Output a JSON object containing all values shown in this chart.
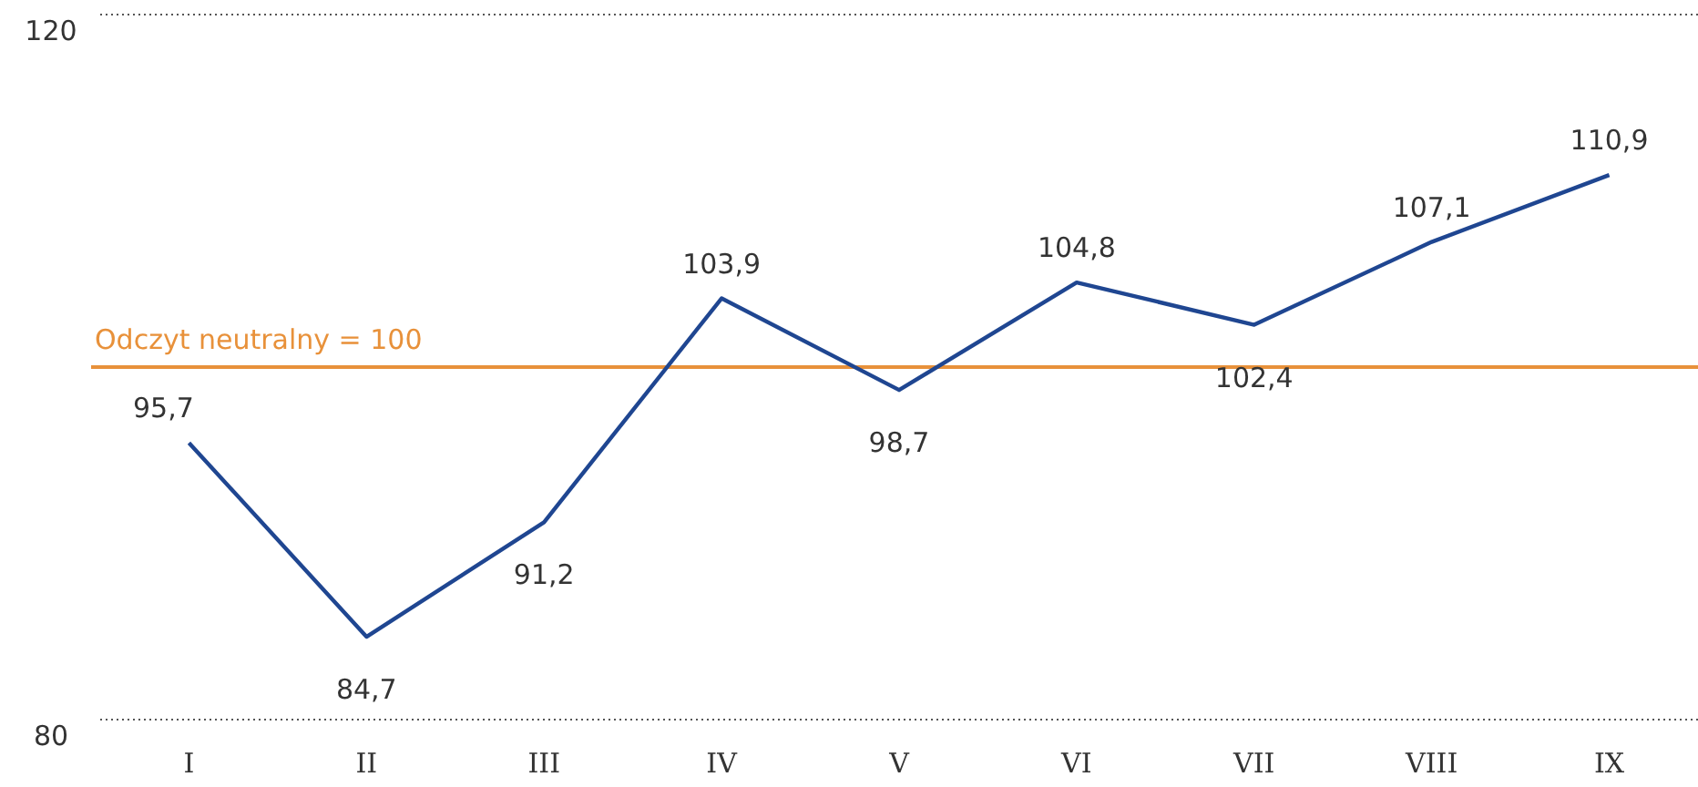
{
  "chart_data": {
    "type": "line",
    "categories": [
      "I",
      "II",
      "III",
      "IV",
      "V",
      "VI",
      "VII",
      "VIII",
      "IX"
    ],
    "series": [
      {
        "color": "#1f4691",
        "values": [
          95.7,
          84.7,
          91.2,
          103.9,
          98.7,
          104.8,
          102.4,
          107.1,
          110.9
        ],
        "value_labels": [
          "95,7",
          "84,7",
          "91,2",
          "103,9",
          "98,7",
          "104,8",
          "102,4",
          "107,1",
          "110,9"
        ]
      }
    ],
    "ylim": [
      80,
      120
    ],
    "yticks": [
      {
        "value": 80,
        "label": "80"
      },
      {
        "value": 120,
        "label": "120"
      }
    ],
    "grid": "y",
    "marker": "none",
    "line_style": "solid",
    "ref_lines": [
      {
        "axis": "y",
        "value": 100,
        "label": "Odczyt neutralny = 100",
        "color": "#e8913a"
      }
    ]
  }
}
